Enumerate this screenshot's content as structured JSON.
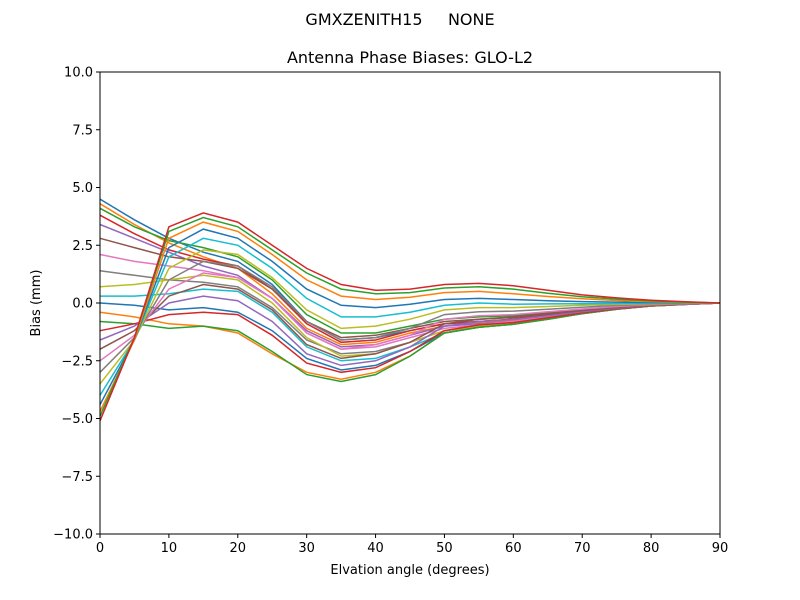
{
  "figure": {
    "suptitle": "GMXZENITH15     NONE",
    "title": "Antenna Phase Biases: GLO-L2"
  },
  "chart_data": {
    "type": "line",
    "title": "Antenna Phase Biases: GLO-L2",
    "suptitle": "GMXZENITH15     NONE",
    "xlabel": "Elvation angle (degrees)",
    "ylabel": "Bias (mm)",
    "xlim": [
      0,
      90
    ],
    "ylim": [
      -10,
      10
    ],
    "xticks": [
      0,
      10,
      20,
      30,
      40,
      50,
      60,
      70,
      80,
      90
    ],
    "yticks": [
      -10.0,
      -7.5,
      -5.0,
      -2.5,
      0.0,
      2.5,
      5.0,
      7.5,
      10.0
    ],
    "ytick_labels": [
      "−10.0",
      "−7.5",
      "−5.0",
      "−2.5",
      "0.0",
      "2.5",
      "5.0",
      "7.5",
      "10.0"
    ],
    "xtick_labels": [
      "0",
      "10",
      "20",
      "30",
      "40",
      "50",
      "60",
      "70",
      "80",
      "90"
    ],
    "grid": false,
    "legend": null,
    "x": [
      0,
      5,
      10,
      15,
      20,
      25,
      30,
      35,
      40,
      45,
      50,
      55,
      60,
      65,
      70,
      75,
      80,
      85,
      90
    ],
    "color_cycle": [
      "#1f77b4",
      "#ff7f0e",
      "#2ca02c",
      "#d62728",
      "#9467bd",
      "#8c564b",
      "#e377c2",
      "#7f7f7f",
      "#bcbd22",
      "#17becf"
    ],
    "series": [
      {
        "name": "s01",
        "values": [
          4.5,
          3.6,
          2.8,
          2.2,
          1.8,
          0.8,
          -0.8,
          -1.6,
          -1.5,
          -1.2,
          -0.9,
          -0.8,
          -0.7,
          -0.5,
          -0.35,
          -0.2,
          -0.1,
          -0.05,
          0.0
        ]
      },
      {
        "name": "s02",
        "values": [
          4.3,
          3.4,
          2.6,
          2.0,
          1.5,
          0.4,
          -1.1,
          -1.8,
          -1.7,
          -1.3,
          -1.0,
          -0.85,
          -0.75,
          -0.55,
          -0.38,
          -0.22,
          -0.11,
          -0.05,
          0.0
        ]
      },
      {
        "name": "s03",
        "values": [
          4.1,
          3.3,
          2.7,
          2.4,
          2.0,
          1.0,
          -0.5,
          -1.3,
          -1.3,
          -1.0,
          -0.7,
          -0.6,
          -0.55,
          -0.4,
          -0.28,
          -0.16,
          -0.08,
          -0.04,
          0.0
        ]
      },
      {
        "name": "s04",
        "values": [
          3.8,
          3.0,
          2.3,
          1.9,
          1.6,
          0.6,
          -0.9,
          -1.7,
          -1.6,
          -1.2,
          -0.9,
          -0.8,
          -0.7,
          -0.5,
          -0.35,
          -0.2,
          -0.1,
          -0.05,
          0.0
        ]
      },
      {
        "name": "s05",
        "values": [
          3.4,
          2.8,
          2.2,
          1.6,
          1.2,
          0.2,
          -1.2,
          -1.9,
          -1.8,
          -1.4,
          -1.0,
          -0.9,
          -0.8,
          -0.6,
          -0.4,
          -0.24,
          -0.12,
          -0.05,
          0.0
        ]
      },
      {
        "name": "s06",
        "values": [
          2.8,
          2.4,
          2.0,
          1.8,
          1.5,
          0.6,
          -0.8,
          -1.5,
          -1.4,
          -1.1,
          -0.8,
          -0.7,
          -0.6,
          -0.45,
          -0.32,
          -0.18,
          -0.09,
          -0.04,
          0.0
        ]
      },
      {
        "name": "s07",
        "values": [
          2.1,
          1.8,
          1.6,
          1.4,
          1.1,
          0.2,
          -1.3,
          -2.0,
          -1.9,
          -1.5,
          -1.1,
          -0.95,
          -0.8,
          -0.6,
          -0.42,
          -0.25,
          -0.12,
          -0.05,
          0.0
        ]
      },
      {
        "name": "s08",
        "values": [
          1.4,
          1.2,
          1.0,
          0.9,
          0.7,
          -0.2,
          -1.6,
          -2.2,
          -2.1,
          -1.7,
          -1.2,
          -1.0,
          -0.9,
          -0.65,
          -0.45,
          -0.26,
          -0.13,
          -0.06,
          0.0
        ]
      },
      {
        "name": "s09",
        "values": [
          0.7,
          0.8,
          1.0,
          1.2,
          1.0,
          0.0,
          -1.5,
          -2.3,
          -2.2,
          -1.7,
          -1.2,
          -1.0,
          -0.9,
          -0.65,
          -0.45,
          -0.26,
          -0.13,
          -0.06,
          0.0
        ]
      },
      {
        "name": "s10",
        "values": [
          0.3,
          0.3,
          0.4,
          0.6,
          0.5,
          -0.4,
          -1.9,
          -2.5,
          -2.4,
          -1.9,
          -1.3,
          -1.05,
          -0.92,
          -0.68,
          -0.46,
          -0.27,
          -0.13,
          -0.06,
          0.0
        ]
      },
      {
        "name": "s11",
        "values": [
          0.0,
          -0.1,
          -0.3,
          -0.2,
          -0.4,
          -1.2,
          -2.4,
          -2.9,
          -2.7,
          -2.1,
          -1.3,
          -1.05,
          -0.92,
          -0.7,
          -0.46,
          -0.27,
          -0.13,
          -0.06,
          0.0
        ]
      },
      {
        "name": "s12",
        "values": [
          -0.4,
          -0.6,
          -0.9,
          -1.0,
          -1.3,
          -2.2,
          -3.0,
          -3.3,
          -3.0,
          -2.3,
          -1.3,
          -1.05,
          -0.92,
          -0.7,
          -0.46,
          -0.27,
          -0.13,
          -0.06,
          0.0
        ]
      },
      {
        "name": "s13",
        "values": [
          -0.8,
          -0.9,
          -1.1,
          -1.0,
          -1.2,
          -2.1,
          -3.1,
          -3.4,
          -3.1,
          -2.3,
          -1.3,
          -1.05,
          -0.92,
          -0.7,
          -0.46,
          -0.27,
          -0.13,
          -0.06,
          0.0
        ]
      },
      {
        "name": "s14",
        "values": [
          -1.2,
          -0.9,
          -0.5,
          -0.4,
          -0.5,
          -1.4,
          -2.6,
          -3.0,
          -2.8,
          -2.1,
          -1.2,
          -0.95,
          -0.85,
          -0.64,
          -0.43,
          -0.25,
          -0.12,
          -0.05,
          0.0
        ]
      },
      {
        "name": "s15",
        "values": [
          -1.6,
          -1.0,
          0.0,
          0.3,
          0.1,
          -0.8,
          -2.2,
          -2.7,
          -2.5,
          -1.9,
          -1.0,
          -0.8,
          -0.72,
          -0.55,
          -0.38,
          -0.22,
          -0.11,
          -0.05,
          0.0
        ]
      },
      {
        "name": "s16",
        "values": [
          -2.0,
          -1.2,
          0.3,
          0.8,
          0.6,
          -0.3,
          -1.8,
          -2.4,
          -2.2,
          -1.7,
          -0.9,
          -0.7,
          -0.63,
          -0.48,
          -0.33,
          -0.19,
          -0.1,
          -0.04,
          0.0
        ]
      },
      {
        "name": "s17",
        "values": [
          -2.5,
          -1.4,
          0.6,
          1.3,
          1.1,
          0.2,
          -1.3,
          -2.0,
          -1.8,
          -1.4,
          -0.7,
          -0.55,
          -0.5,
          -0.38,
          -0.26,
          -0.15,
          -0.08,
          -0.03,
          0.0
        ]
      },
      {
        "name": "s18",
        "values": [
          -3.0,
          -1.5,
          1.0,
          1.8,
          1.6,
          0.7,
          -0.8,
          -1.6,
          -1.5,
          -1.1,
          -0.5,
          -0.38,
          -0.35,
          -0.27,
          -0.18,
          -0.1,
          -0.05,
          -0.02,
          0.0
        ]
      },
      {
        "name": "s19",
        "values": [
          -3.5,
          -1.6,
          1.5,
          2.3,
          2.1,
          1.1,
          -0.3,
          -1.1,
          -1.0,
          -0.7,
          -0.3,
          -0.2,
          -0.2,
          -0.15,
          -0.1,
          -0.06,
          -0.03,
          -0.01,
          0.0
        ]
      },
      {
        "name": "s20",
        "values": [
          -4.0,
          -1.6,
          2.0,
          2.8,
          2.5,
          1.5,
          0.2,
          -0.6,
          -0.6,
          -0.4,
          -0.1,
          0.0,
          -0.05,
          -0.04,
          -0.03,
          -0.02,
          -0.01,
          0.0,
          0.0
        ]
      },
      {
        "name": "s21",
        "values": [
          -4.4,
          -1.6,
          2.4,
          3.2,
          2.8,
          1.8,
          0.6,
          -0.1,
          -0.2,
          -0.05,
          0.15,
          0.2,
          0.15,
          0.1,
          0.06,
          0.04,
          0.02,
          0.01,
          0.0
        ]
      },
      {
        "name": "s22",
        "values": [
          -4.7,
          -1.6,
          2.8,
          3.5,
          3.1,
          2.1,
          1.0,
          0.3,
          0.15,
          0.25,
          0.45,
          0.5,
          0.4,
          0.28,
          0.18,
          0.11,
          0.06,
          0.02,
          0.0
        ]
      },
      {
        "name": "s23",
        "values": [
          -4.9,
          -1.5,
          3.1,
          3.7,
          3.3,
          2.3,
          1.3,
          0.6,
          0.4,
          0.45,
          0.65,
          0.7,
          0.6,
          0.42,
          0.27,
          0.17,
          0.09,
          0.04,
          0.0
        ]
      },
      {
        "name": "s24",
        "values": [
          -5.1,
          -1.5,
          3.3,
          3.9,
          3.5,
          2.5,
          1.5,
          0.8,
          0.55,
          0.6,
          0.8,
          0.85,
          0.75,
          0.55,
          0.35,
          0.22,
          0.12,
          0.05,
          0.0
        ]
      }
    ]
  }
}
